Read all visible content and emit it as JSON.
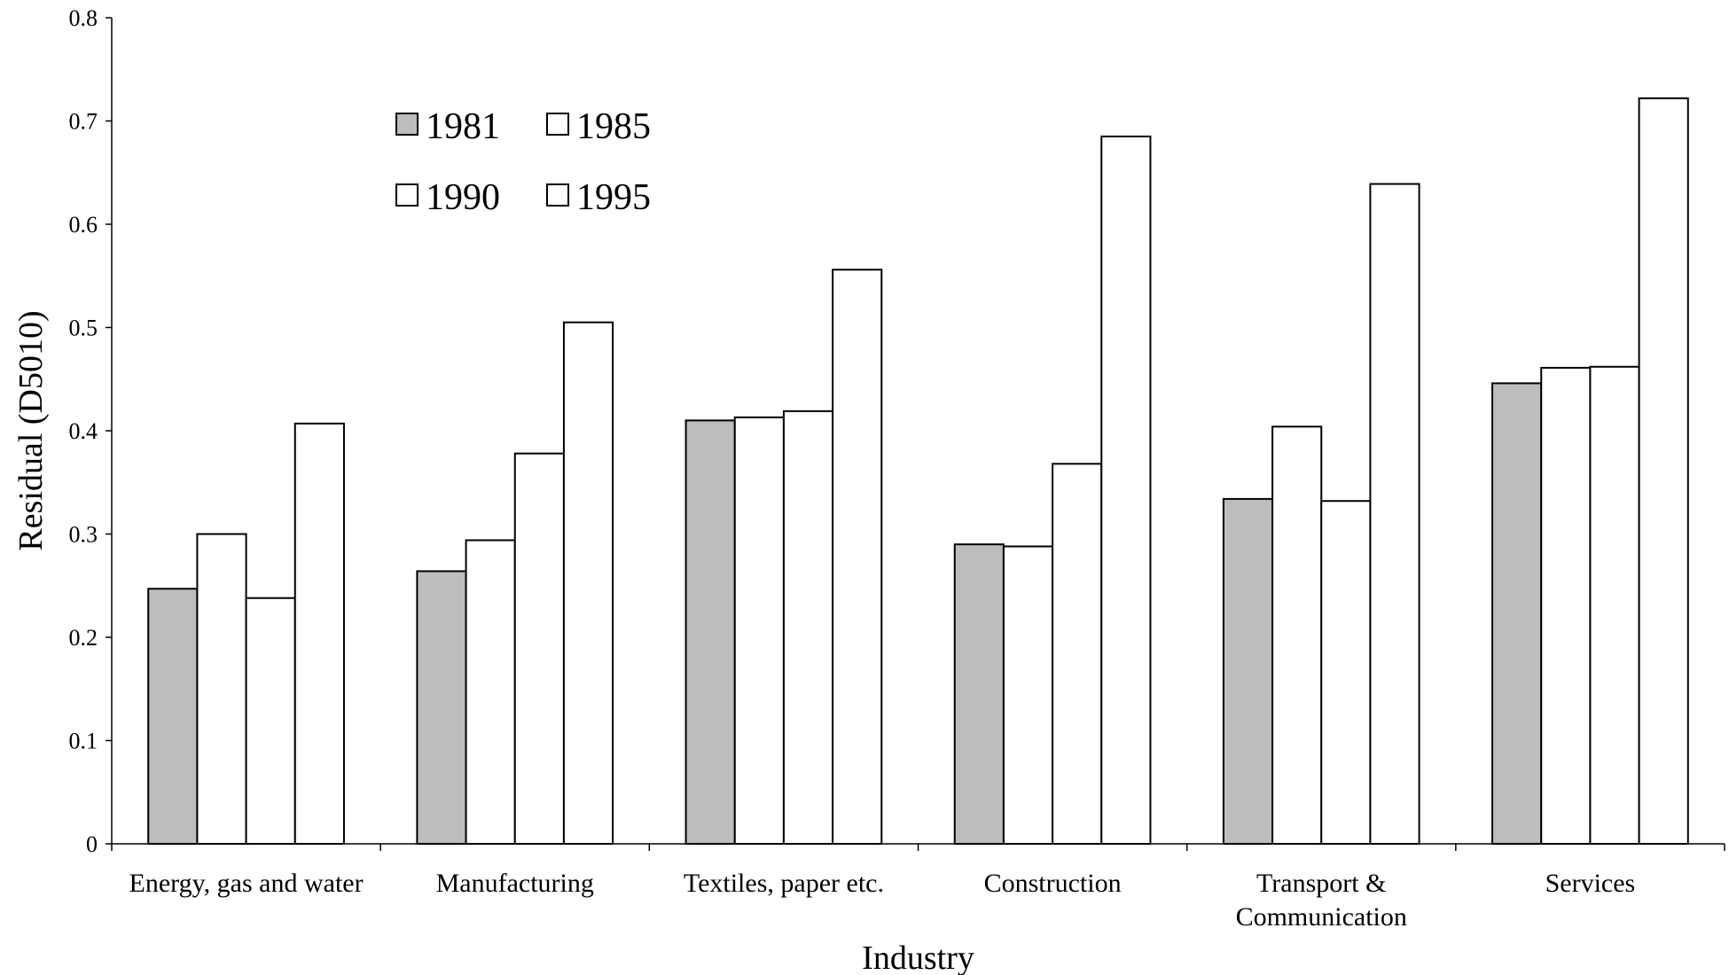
{
  "chart_data": {
    "type": "bar",
    "xlabel": "Industry",
    "ylabel": "Residual (D5010)",
    "ylim": [
      0,
      0.8
    ],
    "yticks": [
      "0",
      "0.1",
      "0.2",
      "0.3",
      "0.4",
      "0.5",
      "0.6",
      "0.7",
      "0.8"
    ],
    "grid": false,
    "legend_position": "top-left",
    "categories": [
      [
        "Energy, gas and water"
      ],
      [
        "Manufacturing"
      ],
      [
        "Textiles, paper etc."
      ],
      [
        "Construction"
      ],
      [
        "Transport &",
        "Communication"
      ],
      [
        "Services"
      ]
    ],
    "series": [
      {
        "name": "1981",
        "color": "#bdbdbd",
        "values": [
          0.247,
          0.264,
          0.41,
          0.29,
          0.334,
          0.446
        ]
      },
      {
        "name": "1985",
        "color": "#ffffff",
        "values": [
          0.3,
          0.294,
          0.413,
          0.288,
          0.404,
          0.461
        ]
      },
      {
        "name": "1990",
        "color": "#ffffff",
        "values": [
          0.238,
          0.378,
          0.419,
          0.368,
          0.332,
          0.462
        ]
      },
      {
        "name": "1995",
        "color": "#ffffff",
        "values": [
          0.407,
          0.505,
          0.556,
          0.685,
          0.639,
          0.722
        ]
      }
    ]
  }
}
